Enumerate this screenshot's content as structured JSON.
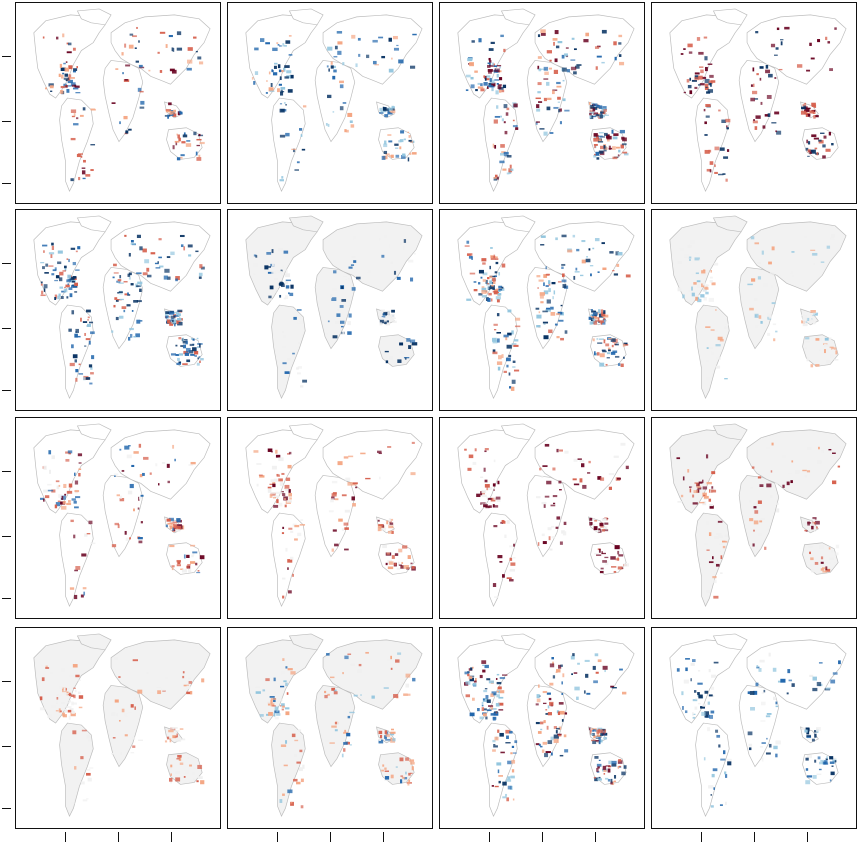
{
  "figure": {
    "rows": 4,
    "cols": 4,
    "panel_count": 16,
    "colormap": {
      "strong_negative": "#053061",
      "negative": "#2166ac",
      "light_negative": "#92c5de",
      "neutral": "#f0f0f0",
      "light_positive": "#f4a582",
      "positive": "#d6604d",
      "strong_positive": "#67001f"
    },
    "coastline_color": "#bdbdbd",
    "panels": [
      {
        "id": "r1c1",
        "pattern": "mixed-red-blue-sparse"
      },
      {
        "id": "r1c2",
        "pattern": "mostly-blue-sparse"
      },
      {
        "id": "r1c3",
        "pattern": "mixed-red-blue-dense"
      },
      {
        "id": "r1c4",
        "pattern": "mixed-strong-sparse"
      },
      {
        "id": "r2c1",
        "pattern": "mostly-blue-dense"
      },
      {
        "id": "r2c2",
        "pattern": "mostly-blue-with-grey"
      },
      {
        "id": "r2c3",
        "pattern": "mixed-red-blue-speckled"
      },
      {
        "id": "r2c4",
        "pattern": "mostly-neutral-grey"
      },
      {
        "id": "r3c1",
        "pattern": "mostly-red-with-blue"
      },
      {
        "id": "r3c2",
        "pattern": "mostly-red"
      },
      {
        "id": "r3c3",
        "pattern": "strong-red"
      },
      {
        "id": "r3c4",
        "pattern": "red-with-grey"
      },
      {
        "id": "r4c1",
        "pattern": "light-red-grey"
      },
      {
        "id": "r4c2",
        "pattern": "mixed-light"
      },
      {
        "id": "r4c3",
        "pattern": "mixed-red-blue-dense"
      },
      {
        "id": "r4c4",
        "pattern": "mostly-blue"
      }
    ]
  }
}
